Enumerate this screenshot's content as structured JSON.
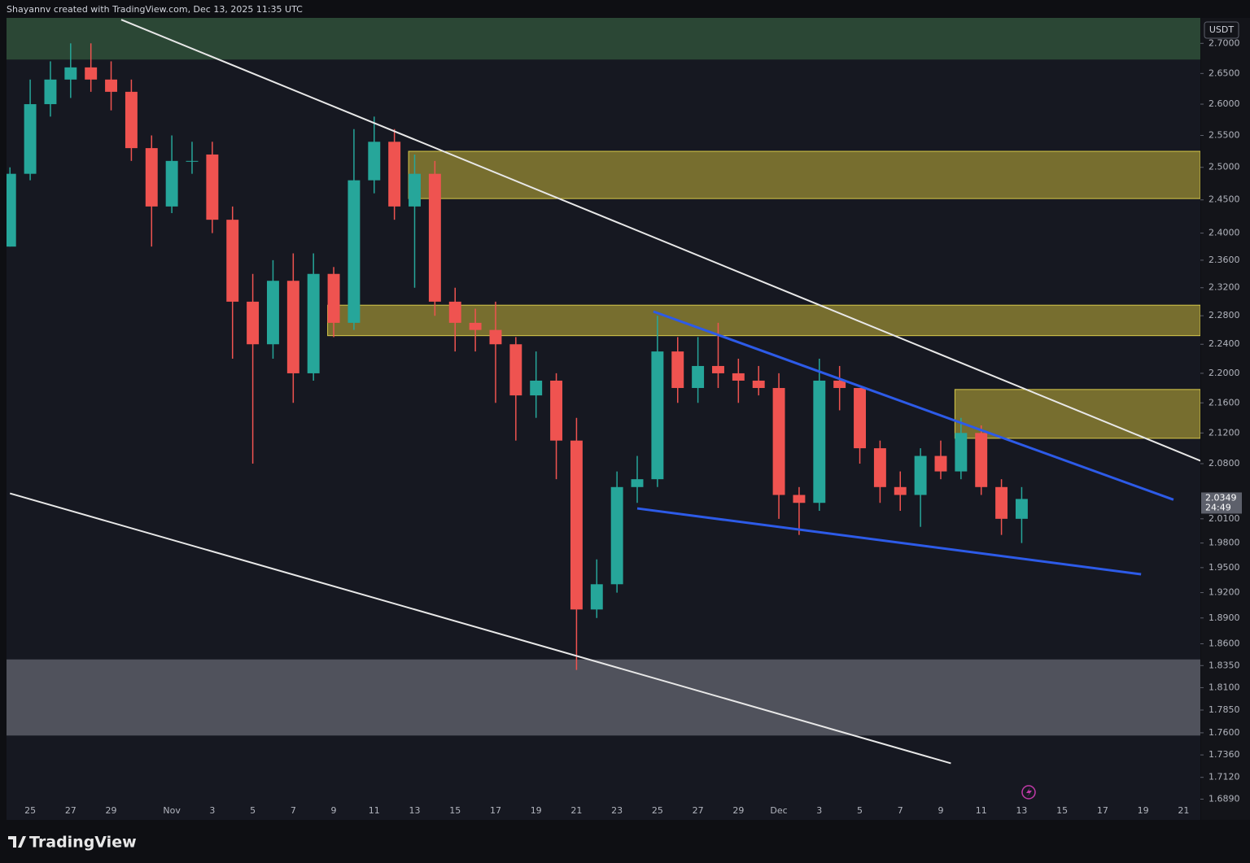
{
  "chart_data": {
    "type": "candlestick",
    "attribution": "Shayannv created with TradingView.com, Dec 13, 2025 11:35 UTC",
    "currency": "USDT",
    "countdown": "24:49",
    "brand": "TradingView",
    "log_scale": true,
    "grid": false,
    "up_color": "#26a69a",
    "down_color": "#ef5350",
    "categories": [
      null,
      "25",
      null,
      "27",
      null,
      "29",
      null,
      null,
      "Nov",
      null,
      "3",
      null,
      "5",
      null,
      "7",
      null,
      "9",
      null,
      "11",
      null,
      "13",
      null,
      "15",
      null,
      "17",
      null,
      "19",
      null,
      "21",
      null,
      "23",
      null,
      "25",
      null,
      "27",
      null,
      "29",
      null,
      "Dec",
      null,
      "3",
      null,
      "5",
      null,
      "7",
      null,
      "9",
      null,
      "11",
      null,
      "13",
      null,
      "15",
      null,
      "17",
      null,
      "19",
      null,
      "21"
    ],
    "series": [
      {
        "open": [
          2.38,
          2.49,
          2.6,
          2.64,
          2.66,
          2.64,
          2.62,
          2.53,
          2.44,
          2.51,
          2.52,
          2.42,
          2.3,
          2.24,
          2.33,
          2.2,
          2.34,
          2.27,
          2.48,
          2.54,
          2.44,
          2.49,
          2.3,
          2.27,
          2.26,
          2.24,
          2.17,
          2.19,
          2.11,
          1.9,
          1.93,
          2.05,
          2.06,
          2.23,
          2.18,
          2.21,
          2.2,
          2.19,
          2.18,
          2.04,
          2.03,
          2.19,
          2.18,
          2.1,
          2.05,
          2.04,
          2.09,
          2.07,
          2.12,
          2.05,
          2.01,
          null,
          null,
          null,
          null,
          null,
          null,
          null,
          null
        ],
        "high": [
          2.5,
          2.64,
          2.67,
          2.7,
          2.7,
          2.67,
          2.64,
          2.55,
          2.55,
          2.54,
          2.54,
          2.44,
          2.34,
          2.36,
          2.37,
          2.37,
          2.35,
          2.56,
          2.58,
          2.56,
          2.52,
          2.51,
          2.32,
          2.29,
          2.3,
          2.25,
          2.23,
          2.2,
          2.14,
          1.96,
          2.07,
          2.09,
          2.28,
          2.25,
          2.25,
          2.27,
          2.22,
          2.21,
          2.2,
          2.05,
          2.22,
          2.21,
          2.18,
          2.11,
          2.07,
          2.1,
          2.11,
          2.14,
          2.13,
          2.06,
          2.05,
          null,
          null,
          null,
          null,
          null,
          null,
          null,
          null
        ],
        "low": [
          2.38,
          2.48,
          2.58,
          2.61,
          2.62,
          2.59,
          2.51,
          2.38,
          2.43,
          2.49,
          2.4,
          2.22,
          2.08,
          2.22,
          2.16,
          2.19,
          2.25,
          2.26,
          2.46,
          2.42,
          2.32,
          2.28,
          2.23,
          2.23,
          2.16,
          2.11,
          2.14,
          2.06,
          1.83,
          1.89,
          1.92,
          2.03,
          2.05,
          2.16,
          2.16,
          2.18,
          2.16,
          2.17,
          2.01,
          1.99,
          2.02,
          2.15,
          2.08,
          2.03,
          2.02,
          2.0,
          2.06,
          2.06,
          2.04,
          1.99,
          1.98,
          null,
          null,
          null,
          null,
          null,
          null,
          null,
          null
        ],
        "close": [
          2.49,
          2.6,
          2.64,
          2.66,
          2.64,
          2.62,
          2.53,
          2.44,
          2.51,
          2.51,
          2.42,
          2.3,
          2.24,
          2.33,
          2.2,
          2.34,
          2.27,
          2.48,
          2.54,
          2.44,
          2.49,
          2.3,
          2.27,
          2.26,
          2.24,
          2.17,
          2.19,
          2.11,
          1.9,
          1.93,
          2.05,
          2.06,
          2.23,
          2.18,
          2.21,
          2.2,
          2.19,
          2.18,
          2.04,
          2.03,
          2.19,
          2.18,
          2.1,
          2.05,
          2.04,
          2.09,
          2.07,
          2.12,
          2.05,
          2.01,
          2.0349,
          null,
          null,
          null,
          null,
          null,
          null,
          null,
          null
        ]
      }
    ],
    "ylim": [
      1.686,
      2.743
    ],
    "yticks": [
      {
        "value": 2.7,
        "label": "2.7000"
      },
      {
        "value": 2.65,
        "label": "2.6500"
      },
      {
        "value": 2.6,
        "label": "2.6000"
      },
      {
        "value": 2.55,
        "label": "2.5500"
      },
      {
        "value": 2.5,
        "label": "2.5000"
      },
      {
        "value": 2.45,
        "label": "2.4500"
      },
      {
        "value": 2.4,
        "label": "2.4000"
      },
      {
        "value": 2.36,
        "label": "2.3600"
      },
      {
        "value": 2.32,
        "label": "2.3200"
      },
      {
        "value": 2.28,
        "label": "2.2800"
      },
      {
        "value": 2.24,
        "label": "2.2400"
      },
      {
        "value": 2.2,
        "label": "2.2000"
      },
      {
        "value": 2.16,
        "label": "2.1600"
      },
      {
        "value": 2.12,
        "label": "2.1200"
      },
      {
        "value": 2.08,
        "label": "2.0800"
      },
      {
        "value": 2.01,
        "label": "2.0100"
      },
      {
        "value": 1.98,
        "label": "1.9800"
      },
      {
        "value": 1.95,
        "label": "1.9500"
      },
      {
        "value": 1.92,
        "label": "1.9200"
      },
      {
        "value": 1.89,
        "label": "1.8900"
      },
      {
        "value": 1.86,
        "label": "1.8600"
      },
      {
        "value": 1.835,
        "label": "1.8350"
      },
      {
        "value": 1.81,
        "label": "1.8100"
      },
      {
        "value": 1.785,
        "label": "1.7850"
      },
      {
        "value": 1.76,
        "label": "1.7600"
      },
      {
        "value": 1.736,
        "label": "1.7360"
      },
      {
        "value": 1.712,
        "label": "1.7120"
      },
      {
        "value": 1.689,
        "label": "1.6890"
      }
    ],
    "zones": [
      {
        "start": 0,
        "top": 2.743,
        "bottom": 2.673,
        "color": "#2b4735"
      },
      {
        "start": 20,
        "top": 2.525,
        "bottom": 2.452,
        "color": "#9c9034"
      },
      {
        "start": 16,
        "top": 2.295,
        "bottom": 2.252,
        "color": "#9c9034"
      },
      {
        "start": 47,
        "top": 2.178,
        "bottom": 2.113,
        "color": "#9c9034"
      },
      {
        "start": 0,
        "top": 1.842,
        "bottom": 1.757,
        "color": "#50525c"
      }
    ],
    "lines": [
      {
        "color": "#e8e8e8",
        "x": [
          5.5,
          59
        ],
        "values": [
          2.74,
          2.082
        ]
      },
      {
        "color": "#e8e8e8",
        "x": [
          0,
          46.5
        ],
        "values": [
          2.042,
          1.727
        ]
      },
      {
        "color": "#2d5be8",
        "x": [
          31.8,
          57.5
        ],
        "values": [
          2.286,
          2.034
        ]
      },
      {
        "color": "#2d5be8",
        "x": [
          31,
          55.9
        ],
        "values": [
          2.023,
          1.942
        ]
      }
    ]
  }
}
